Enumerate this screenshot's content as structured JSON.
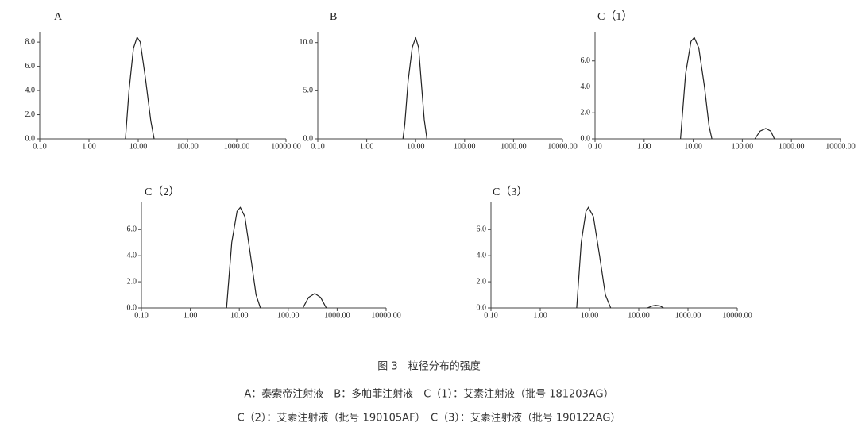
{
  "chart_data": [
    {
      "type": "line",
      "title": "A",
      "log_x": true,
      "x": [
        5.5,
        6.5,
        8,
        9.5,
        11,
        14,
        18,
        21
      ],
      "values": [
        0,
        4,
        7.5,
        8.4,
        8,
        5,
        1.5,
        0
      ],
      "xlim": [
        0.1,
        10000
      ],
      "ylim": [
        0,
        8.6
      ],
      "color": "#222",
      "xticks": [
        {
          "value": 0.1,
          "label": "0.10"
        },
        {
          "value": 1,
          "label": "1.00"
        },
        {
          "value": 10,
          "label": "10.00"
        },
        {
          "value": 100,
          "label": "100.00"
        },
        {
          "value": 1000,
          "label": "1000.00"
        },
        {
          "value": 10000,
          "label": "10000.00"
        }
      ],
      "yticks": [
        {
          "value": 0,
          "label": "0.0"
        },
        {
          "value": 2,
          "label": "2.0"
        },
        {
          "value": 4,
          "label": "4.0"
        },
        {
          "value": 6,
          "label": "6.0"
        },
        {
          "value": 8,
          "label": "8.0"
        }
      ]
    },
    {
      "type": "line",
      "title": "B",
      "log_x": true,
      "x": [
        5.5,
        6,
        7,
        8.5,
        10,
        11.5,
        13,
        15,
        17
      ],
      "values": [
        0,
        1.5,
        6,
        9.5,
        10.5,
        9.5,
        6,
        2,
        0
      ],
      "xlim": [
        0.1,
        10000
      ],
      "ylim": [
        0,
        10.8
      ],
      "color": "#222",
      "xticks": [
        {
          "value": 0.1,
          "label": "0.10"
        },
        {
          "value": 1,
          "label": "1.00"
        },
        {
          "value": 10,
          "label": "10.00"
        },
        {
          "value": 100,
          "label": "100.00"
        },
        {
          "value": 1000,
          "label": "1000.00"
        },
        {
          "value": 10000,
          "label": "10000.00"
        }
      ],
      "yticks": [
        {
          "value": 0,
          "label": "0.0"
        },
        {
          "value": 5,
          "label": "5.0"
        },
        {
          "value": 10,
          "label": "10.0"
        }
      ]
    },
    {
      "type": "line",
      "title": "C（1）",
      "log_x": true,
      "x": [
        5.5,
        7,
        9,
        10.5,
        13,
        17,
        21,
        24,
        60,
        180,
        230,
        300,
        380,
        450
      ],
      "values": [
        0,
        5,
        7.5,
        7.8,
        7,
        4,
        1,
        0,
        null,
        0,
        0.6,
        0.8,
        0.6,
        0
      ],
      "xlim": [
        0.1,
        10000
      ],
      "ylim": [
        0,
        8
      ],
      "color": "#222",
      "xticks": [
        {
          "value": 0.1,
          "label": "0.10"
        },
        {
          "value": 1,
          "label": "1.00"
        },
        {
          "value": 10,
          "label": "10.00"
        },
        {
          "value": 100,
          "label": "100.00"
        },
        {
          "value": 1000,
          "label": "1000.00"
        },
        {
          "value": 10000,
          "label": "10000.00"
        }
      ],
      "yticks": [
        {
          "value": 0,
          "label": "0.0"
        },
        {
          "value": 2,
          "label": "2.0"
        },
        {
          "value": 4,
          "label": "4.0"
        },
        {
          "value": 6,
          "label": "6.0"
        }
      ]
    },
    {
      "type": "line",
      "title": "C（2）",
      "log_x": true,
      "x": [
        5.5,
        7,
        9,
        10.5,
        13,
        17,
        22,
        27,
        80,
        200,
        260,
        350,
        460,
        600
      ],
      "values": [
        0,
        5,
        7.4,
        7.7,
        7,
        4,
        1,
        0,
        null,
        0,
        0.8,
        1.1,
        0.8,
        0
      ],
      "xlim": [
        0.1,
        10000
      ],
      "ylim": [
        0,
        7.9
      ],
      "color": "#222",
      "xticks": [
        {
          "value": 0.1,
          "label": "0.10"
        },
        {
          "value": 1,
          "label": "1.00"
        },
        {
          "value": 10,
          "label": "10.00"
        },
        {
          "value": 100,
          "label": "100.00"
        },
        {
          "value": 1000,
          "label": "1000.00"
        },
        {
          "value": 10000,
          "label": "10000.00"
        }
      ],
      "yticks": [
        {
          "value": 0,
          "label": "0.0"
        },
        {
          "value": 2,
          "label": "2.0"
        },
        {
          "value": 4,
          "label": "4.0"
        },
        {
          "value": 6,
          "label": "6.0"
        }
      ]
    },
    {
      "type": "line",
      "title": "C（3）",
      "log_x": true,
      "x": [
        5.5,
        6.8,
        8.5,
        9.5,
        12,
        16,
        21,
        27,
        80,
        150,
        190,
        220,
        270,
        320
      ],
      "values": [
        0,
        5,
        7.4,
        7.7,
        7,
        4,
        1,
        0,
        null,
        0,
        0.15,
        0.2,
        0.15,
        0
      ],
      "xlim": [
        0.1,
        10000
      ],
      "ylim": [
        0,
        7.9
      ],
      "color": "#222",
      "xticks": [
        {
          "value": 0.1,
          "label": "0.10"
        },
        {
          "value": 1,
          "label": "1.00"
        },
        {
          "value": 10,
          "label": "10.00"
        },
        {
          "value": 100,
          "label": "100.00"
        },
        {
          "value": 1000,
          "label": "1000.00"
        },
        {
          "value": 10000,
          "label": "10000.00"
        }
      ],
      "yticks": [
        {
          "value": 0,
          "label": "0.0"
        },
        {
          "value": 2,
          "label": "2.0"
        },
        {
          "value": 4,
          "label": "4.0"
        },
        {
          "value": 6,
          "label": "6.0"
        }
      ]
    }
  ],
  "caption": {
    "figure_title": "图 3　粒径分布的强度",
    "lines": [
      "A：泰索帝注射液　B：多帕菲注射液　C（1）：艾素注射液（批号 181203AG）",
      "C（2）：艾素注射液（批号 190105AF）　C（3）：艾素注射液（批号 190122AG）"
    ]
  }
}
